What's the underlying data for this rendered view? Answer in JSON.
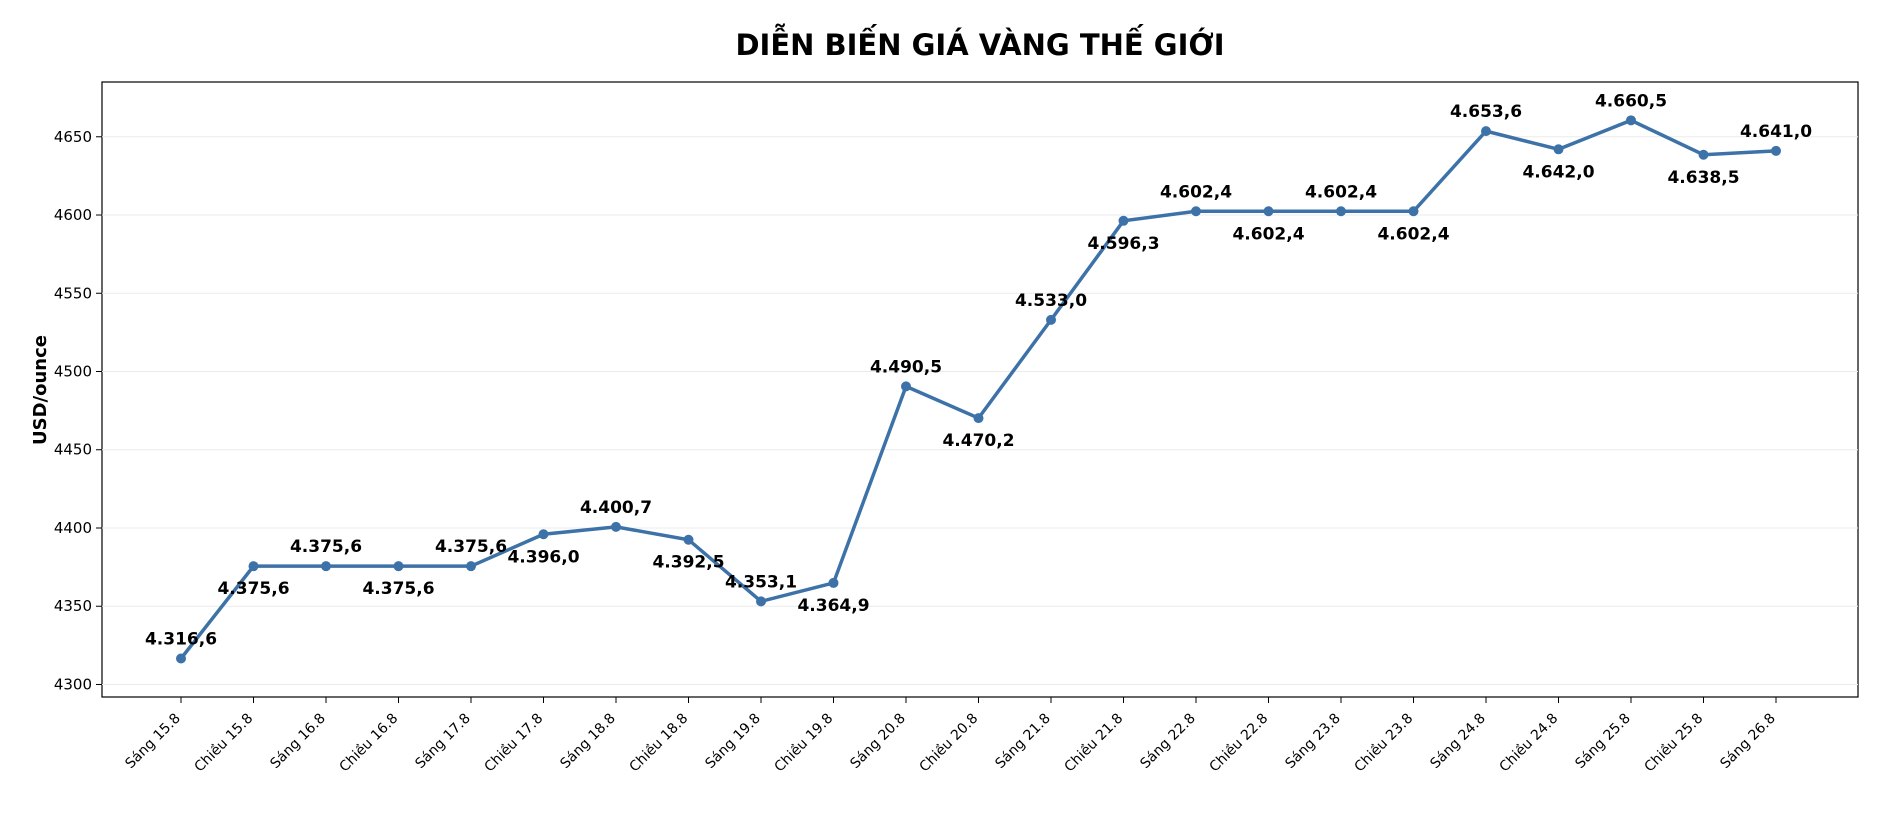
{
  "chart_data": {
    "type": "line",
    "title": "DIỄN BIẾN GIÁ VÀNG THẾ GIỚI",
    "y_label": "USD/ounce",
    "categories": [
      "Sáng 15.8",
      "Chiều 15.8",
      "Sáng 16.8",
      "Chiều 16.8",
      "Sáng 17.8",
      "Chiều 17.8",
      "Sáng 18.8",
      "Chiều 18.8",
      "Sáng 19.8",
      "Chiều 19.8",
      "Sáng 20.8",
      "Chiều 20.8",
      "Sáng 21.8",
      "Chiều 21.8",
      "Sáng 22.8",
      "Chiều 22.8",
      "Sáng 23.8",
      "Chiều 23.8",
      "Sáng 24.8",
      "Chiều 24.8",
      "Sáng 25.8",
      "Chiều 25.8",
      "Sáng 26.8"
    ],
    "values": [
      4316.6,
      4375.6,
      4375.6,
      4375.6,
      4375.6,
      4396.0,
      4400.7,
      4392.5,
      4353.1,
      4364.9,
      4490.5,
      4470.2,
      4533.0,
      4596.3,
      4602.4,
      4602.4,
      4602.4,
      4602.4,
      4653.6,
      4642.0,
      4660.5,
      4638.5,
      4641.0
    ],
    "value_labels": [
      "4.316,6",
      "4.375,6",
      "4.375,6",
      "4.375,6",
      "4.375,6",
      "4.396,0",
      "4.400,7",
      "4.392,5",
      "4.353,1",
      "4.364,9",
      "4.490,5",
      "4.470,2",
      "4.533,0",
      "4.596,3",
      "4.602,4",
      "4.602,4",
      "4.602,4",
      "4.602,4",
      "4.653,6",
      "4.642,0",
      "4.660,5",
      "4.638,5",
      "4.641,0"
    ],
    "color": "#3d72a8",
    "ylim": [
      4292,
      4685
    ],
    "yticks": [
      4300,
      4350,
      4400,
      4450,
      4500,
      4550,
      4600,
      4650
    ],
    "grid": true
  }
}
